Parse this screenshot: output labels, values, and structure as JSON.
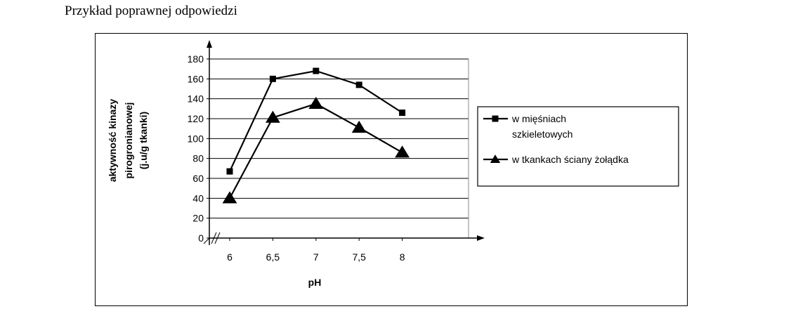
{
  "caption": "Przykład poprawnej odpowiedzi",
  "chart_data": {
    "type": "line",
    "title": "",
    "xlabel": "pH",
    "ylabel": [
      "aktywność kinazy",
      "pirogronianowej",
      "(j.u/g tkanki)"
    ],
    "categories": [
      "6",
      "6,5",
      "7",
      "7,5",
      "8"
    ],
    "ylim": [
      0,
      180
    ],
    "yticks": [
      0,
      20,
      40,
      60,
      80,
      100,
      120,
      140,
      160,
      180
    ],
    "grid": true,
    "legend_position": "right",
    "series": [
      {
        "name": "w mięśniach szkieletowych",
        "legend_lines": [
          "w mięśniach",
          "szkieletowych"
        ],
        "marker": "square",
        "values": [
          67,
          160,
          168,
          154,
          126
        ]
      },
      {
        "name": "w tkankach ściany żołądka",
        "legend_lines": [
          "w tkankach ściany żołądka"
        ],
        "marker": "triangle",
        "values": [
          40,
          121,
          135,
          111,
          86
        ]
      }
    ],
    "axis_break_marker": "//"
  }
}
